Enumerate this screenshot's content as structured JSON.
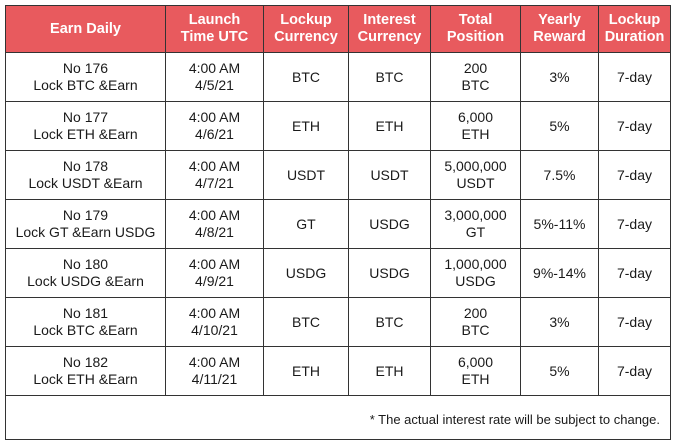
{
  "table": {
    "headers": [
      [
        "Earn Daily"
      ],
      [
        "Launch",
        "Time UTC"
      ],
      [
        "Lockup",
        "Currency"
      ],
      [
        "Interest",
        "Currency"
      ],
      [
        "Total",
        "Position"
      ],
      [
        "Yearly",
        "Reward"
      ],
      [
        "Lockup",
        "Duration"
      ]
    ],
    "rows": [
      {
        "name": [
          "No 176",
          "Lock BTC &Earn"
        ],
        "launch": [
          "4:00 AM",
          "4/5/21"
        ],
        "lockup_currency": "BTC",
        "interest_currency": "BTC",
        "total_position": [
          "200",
          "BTC"
        ],
        "yearly_reward": "3%",
        "duration": "7-day"
      },
      {
        "name": [
          "No 177",
          "Lock ETH &Earn"
        ],
        "launch": [
          "4:00 AM",
          "4/6/21"
        ],
        "lockup_currency": "ETH",
        "interest_currency": "ETH",
        "total_position": [
          "6,000",
          "ETH"
        ],
        "yearly_reward": "5%",
        "duration": "7-day"
      },
      {
        "name": [
          "No 178",
          "Lock USDT &Earn"
        ],
        "launch": [
          "4:00 AM",
          "4/7/21"
        ],
        "lockup_currency": "USDT",
        "interest_currency": "USDT",
        "total_position": [
          "5,000,000",
          "USDT"
        ],
        "yearly_reward": "7.5%",
        "duration": "7-day"
      },
      {
        "name": [
          "No 179",
          "Lock GT &Earn USDG"
        ],
        "launch": [
          "4:00 AM",
          "4/8/21"
        ],
        "lockup_currency": "GT",
        "interest_currency": "USDG",
        "total_position": [
          "3,000,000",
          "GT"
        ],
        "yearly_reward": "5%-11%",
        "duration": "7-day"
      },
      {
        "name": [
          "No 180",
          "Lock USDG &Earn"
        ],
        "launch": [
          "4:00 AM",
          "4/9/21"
        ],
        "lockup_currency": "USDG",
        "interest_currency": "USDG",
        "total_position": [
          "1,000,000",
          "USDG"
        ],
        "yearly_reward": "9%-14%",
        "duration": "7-day"
      },
      {
        "name": [
          "No 181",
          "Lock BTC &Earn"
        ],
        "launch": [
          "4:00 AM",
          "4/10/21"
        ],
        "lockup_currency": "BTC",
        "interest_currency": "BTC",
        "total_position": [
          "200",
          "BTC"
        ],
        "yearly_reward": "3%",
        "duration": "7-day"
      },
      {
        "name": [
          "No 182",
          "Lock ETH &Earn"
        ],
        "launch": [
          "4:00 AM",
          "4/11/21"
        ],
        "lockup_currency": "ETH",
        "interest_currency": "ETH",
        "total_position": [
          "6,000",
          "ETH"
        ],
        "yearly_reward": "5%",
        "duration": "7-day"
      }
    ],
    "footnote": "* The actual interest rate will be subject to change."
  },
  "colors": {
    "header_background": "#e85a5e",
    "header_text": "#ffffff",
    "border": "#333333"
  }
}
